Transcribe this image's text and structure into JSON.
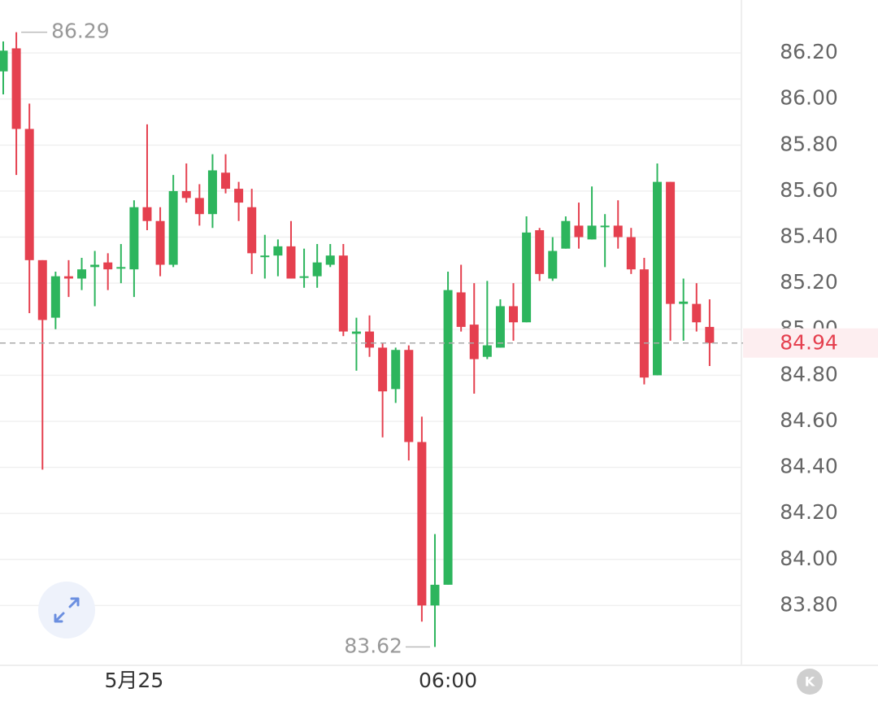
{
  "chart_data": {
    "type": "candlestick",
    "up_color": "#2db55d",
    "down_color": "#e5404f",
    "grid": true,
    "ylim": [
      83.54,
      86.43
    ],
    "yticks": [
      {
        "value": 83.8,
        "label": "83.80"
      },
      {
        "value": 84,
        "label": "84.00"
      },
      {
        "value": 84.2,
        "label": "84.20"
      },
      {
        "value": 84.4,
        "label": "84.40"
      },
      {
        "value": 84.6,
        "label": "84.60"
      },
      {
        "value": 84.8,
        "label": "84.80"
      },
      {
        "value": 85,
        "label": "85.00"
      },
      {
        "value": 85.2,
        "label": "85.20"
      },
      {
        "value": 85.4,
        "label": "85.40"
      },
      {
        "value": 85.6,
        "label": "85.60"
      },
      {
        "value": 85.8,
        "label": "85.80"
      },
      {
        "value": 86,
        "label": "86.00"
      },
      {
        "value": 86.2,
        "label": "86.20"
      }
    ],
    "categories": [
      null,
      null,
      null,
      null,
      null,
      null,
      null,
      null,
      null,
      null,
      "5月25",
      null,
      null,
      null,
      null,
      null,
      null,
      null,
      null,
      null,
      null,
      null,
      null,
      null,
      null,
      null,
      null,
      null,
      null,
      null,
      null,
      null,
      null,
      null,
      "06:00",
      null,
      null,
      null,
      null,
      null,
      null,
      null,
      null,
      null,
      null,
      null,
      null,
      null,
      null,
      null,
      null,
      null,
      null,
      null,
      null
    ],
    "open": [
      86.12,
      86.22,
      85.87,
      85.3,
      85.05,
      85.23,
      85.22,
      85.27,
      85.29,
      85.27,
      85.26,
      85.53,
      85.47,
      85.28,
      85.6,
      85.57,
      85.5,
      85.68,
      85.61,
      85.53,
      85.32,
      85.32,
      85.36,
      85.23,
      85.23,
      85.28,
      85.32,
      84.98,
      84.99,
      84.92,
      84.74,
      84.91,
      84.51,
      83.8,
      83.89,
      85.16,
      85.02,
      84.88,
      84.92,
      85.1,
      85.03,
      85.43,
      85.22,
      85.35,
      85.45,
      85.39,
      85.45,
      85.45,
      85.4,
      85.26,
      84.8,
      85.64,
      85.11,
      85.11,
      85.01
    ],
    "high": [
      86.25,
      86.29,
      85.98,
      85.3,
      85.25,
      85.3,
      85.31,
      85.34,
      85.33,
      85.37,
      85.56,
      85.89,
      85.53,
      85.67,
      85.72,
      85.63,
      85.76,
      85.76,
      85.64,
      85.61,
      85.41,
      85.39,
      85.47,
      85.35,
      85.37,
      85.37,
      85.37,
      85.05,
      85.06,
      84.94,
      84.92,
      84.93,
      84.62,
      84.11,
      85.25,
      85.28,
      85.2,
      85.21,
      85.13,
      85.2,
      85.49,
      85.44,
      85.4,
      85.49,
      85.55,
      85.62,
      85.5,
      85.56,
      85.44,
      85.31,
      85.72,
      85.64,
      85.22,
      85.2,
      85.13
    ],
    "low": [
      86.02,
      85.67,
      85.07,
      84.39,
      85.0,
      85.14,
      85.17,
      85.1,
      85.17,
      85.2,
      85.14,
      85.43,
      85.23,
      85.27,
      85.55,
      85.45,
      85.44,
      85.59,
      85.47,
      85.24,
      85.22,
      85.23,
      85.22,
      85.18,
      85.18,
      85.27,
      84.97,
      84.82,
      84.88,
      84.53,
      84.68,
      84.43,
      83.73,
      83.62,
      83.89,
      84.99,
      84.72,
      84.87,
      84.92,
      84.95,
      85.03,
      85.21,
      85.21,
      85.35,
      85.35,
      85.39,
      85.27,
      85.35,
      85.24,
      84.76,
      84.8,
      84.95,
      84.95,
      84.99,
      84.84
    ],
    "close": [
      86.21,
      85.87,
      85.3,
      85.04,
      85.23,
      85.22,
      85.26,
      85.28,
      85.26,
      85.27,
      85.53,
      85.47,
      85.28,
      85.6,
      85.57,
      85.5,
      85.69,
      85.61,
      85.55,
      85.33,
      85.32,
      85.36,
      85.22,
      85.23,
      85.29,
      85.32,
      84.99,
      84.99,
      84.92,
      84.73,
      84.91,
      84.51,
      83.8,
      83.89,
      85.17,
      85.01,
      84.87,
      84.93,
      85.1,
      85.03,
      85.42,
      85.24,
      85.34,
      85.47,
      85.4,
      85.45,
      85.45,
      85.4,
      85.26,
      84.79,
      85.64,
      85.11,
      85.12,
      85.03,
      84.94
    ],
    "max_marker": 86.29,
    "min_marker": 83.62,
    "last_price": 84.94,
    "k_button_label": "K"
  }
}
